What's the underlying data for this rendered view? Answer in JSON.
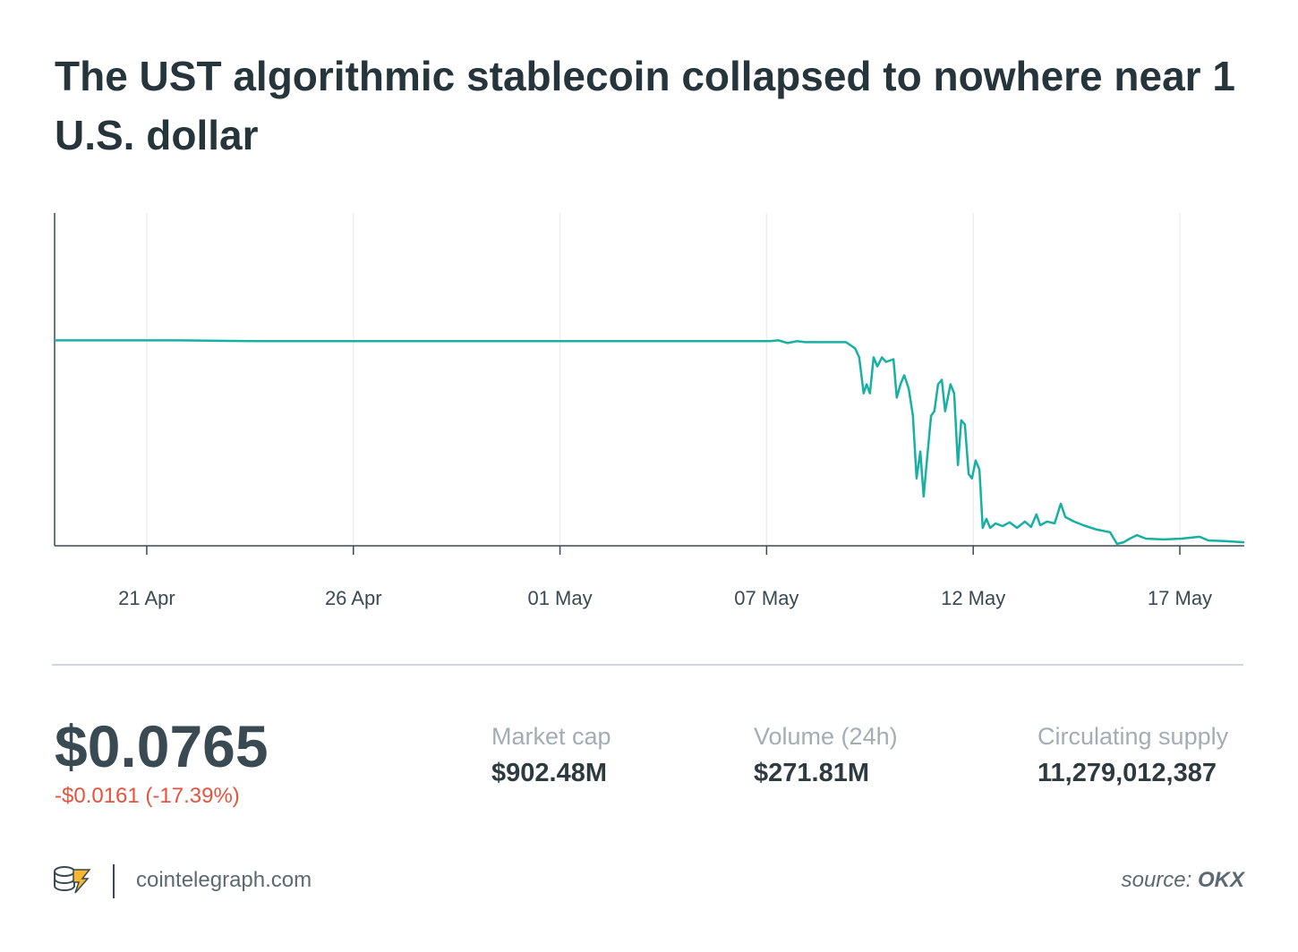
{
  "chart_data": {
    "type": "line",
    "title": "The UST algorithmic stablecoin collapsed to nowhere near 1 U.S. dollar",
    "x": [
      -2.23,
      0.78,
      2.73,
      15.08,
      15.29,
      15.51,
      15.73,
      15.94,
      16.92,
      17.14,
      17.24,
      17.35,
      17.42,
      17.5,
      17.59,
      17.68,
      17.79,
      17.89,
      18.07,
      18.15,
      18.24,
      18.33,
      18.44,
      18.54,
      18.63,
      18.72,
      18.8,
      18.89,
      18.98,
      19.06,
      19.15,
      19.24,
      19.32,
      19.45,
      19.54,
      19.63,
      19.71,
      19.8,
      19.89,
      19.97,
      20.06,
      20.15,
      20.23,
      20.32,
      20.41,
      20.54,
      20.71,
      20.88,
      21.06,
      21.25,
      21.4,
      21.53,
      21.62,
      21.79,
      21.97,
      22.12,
      22.23,
      22.44,
      22.66,
      22.99,
      23.31,
      23.48,
      23.64,
      23.79,
      23.96,
      24.18,
      24.61,
      25.04,
      25.48,
      25.69,
      26.13,
      26.56
    ],
    "values": [
      1.0,
      1.0,
      0.996,
      0.996,
      1.0,
      0.987,
      0.996,
      0.991,
      0.991,
      0.961,
      0.917,
      0.742,
      0.786,
      0.742,
      0.917,
      0.873,
      0.917,
      0.895,
      0.908,
      0.721,
      0.786,
      0.83,
      0.764,
      0.633,
      0.328,
      0.459,
      0.24,
      0.437,
      0.633,
      0.655,
      0.786,
      0.808,
      0.655,
      0.786,
      0.742,
      0.393,
      0.611,
      0.59,
      0.349,
      0.328,
      0.415,
      0.371,
      0.087,
      0.131,
      0.087,
      0.109,
      0.096,
      0.114,
      0.087,
      0.118,
      0.092,
      0.153,
      0.1,
      0.118,
      0.109,
      0.205,
      0.14,
      0.118,
      0.1,
      0.079,
      0.066,
      0.009,
      0.017,
      0.035,
      0.052,
      0.035,
      0.031,
      0.035,
      0.044,
      0.026,
      0.022,
      0.017
    ],
    "color": "#17b0a2",
    "xlim": [
      -2.23,
      26.56
    ],
    "ylim": [
      0,
      1.62
    ],
    "xticks": [
      {
        "value": 0,
        "label": "21 Apr"
      },
      {
        "value": 5,
        "label": "26 Apr"
      },
      {
        "value": 10,
        "label": "01 May"
      },
      {
        "value": 15,
        "label": "07 May"
      },
      {
        "value": 20,
        "label": "12 May"
      },
      {
        "value": 25,
        "label": "17 May"
      }
    ],
    "grid": true
  },
  "stats": {
    "price": "$0.0765",
    "change": "-$0.0161 (-17.39%)",
    "items": [
      {
        "label": "Market cap",
        "value": "$902.48M"
      },
      {
        "label": "Volume (24h)",
        "value": "$271.81M"
      },
      {
        "label": "Circulating supply",
        "value": "11,279,012,387"
      }
    ]
  },
  "footer": {
    "site": "cointelegraph.com",
    "source_prefix": "source:",
    "source": "OKX"
  }
}
